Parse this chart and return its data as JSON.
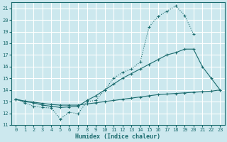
{
  "bg_color": "#cce8ee",
  "grid_color": "#ffffff",
  "line_color": "#1a6b6e",
  "xlabel": "Humidex (Indice chaleur)",
  "xlim": [
    -0.5,
    23.5
  ],
  "ylim": [
    11,
    21.5
  ],
  "yticks": [
    11,
    12,
    13,
    14,
    15,
    16,
    17,
    18,
    19,
    20,
    21
  ],
  "xticks": [
    0,
    1,
    2,
    3,
    4,
    5,
    6,
    7,
    8,
    9,
    10,
    11,
    12,
    13,
    14,
    15,
    16,
    17,
    18,
    19,
    20,
    21,
    22,
    23
  ],
  "line1_x": [
    0,
    1,
    2,
    3,
    4,
    5,
    6,
    7,
    8,
    9,
    10,
    11,
    12,
    13,
    14,
    15,
    16,
    17,
    18,
    19,
    20,
    21,
    22,
    23
  ],
  "line1_y": [
    13.2,
    12.9,
    12.6,
    12.5,
    12.45,
    11.5,
    12.1,
    11.95,
    13.0,
    13.1,
    14.0,
    15.0,
    15.5,
    15.8,
    16.4,
    19.4,
    20.3,
    20.75,
    21.2,
    20.4,
    18.8,
    null,
    null,
    null
  ],
  "line2_x": [
    0,
    1,
    2,
    3,
    4,
    5,
    6,
    7,
    8,
    9,
    10,
    11,
    12,
    13,
    14,
    15,
    16,
    17,
    18,
    19,
    20,
    21,
    22,
    23
  ],
  "line2_y": [
    13.2,
    13.0,
    12.9,
    12.7,
    12.6,
    12.5,
    12.55,
    12.6,
    13.1,
    13.5,
    14.0,
    14.5,
    15.0,
    15.4,
    15.8,
    16.2,
    16.6,
    17.0,
    17.2,
    17.5,
    17.5,
    16.0,
    15.0,
    14.0
  ],
  "line3_x": [
    0,
    1,
    2,
    3,
    4,
    5,
    6,
    7,
    8,
    9,
    10,
    11,
    12,
    13,
    14,
    15,
    16,
    17,
    18,
    19,
    20,
    21,
    22,
    23
  ],
  "line3_y": [
    13.2,
    13.05,
    12.95,
    12.85,
    12.75,
    12.7,
    12.7,
    12.7,
    12.8,
    12.9,
    13.0,
    13.1,
    13.2,
    13.3,
    13.4,
    13.5,
    13.6,
    13.65,
    13.7,
    13.75,
    13.8,
    13.85,
    13.9,
    14.0
  ]
}
